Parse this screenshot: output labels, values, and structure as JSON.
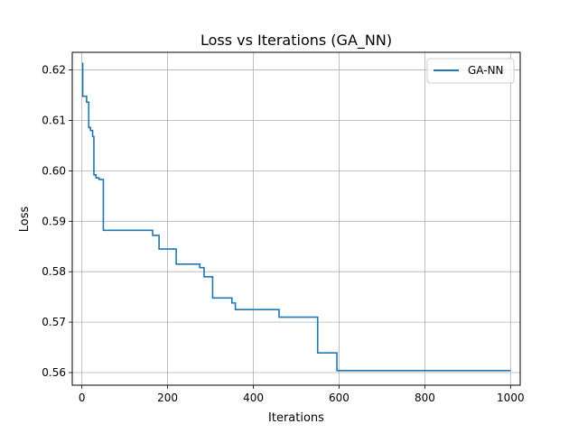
{
  "chart_data": {
    "type": "line",
    "title": "Loss vs Iterations (GA_NN)",
    "xlabel": "Iterations",
    "ylabel": "Loss",
    "xlim": [
      -22.5,
      1022.5
    ],
    "ylim": [
      0.5575,
      0.6235
    ],
    "xticks": [
      0,
      200,
      400,
      600,
      800,
      1000
    ],
    "xtick_labels": [
      "0",
      "200",
      "400",
      "600",
      "800",
      "1000"
    ],
    "yticks": [
      0.56,
      0.57,
      0.58,
      0.59,
      0.6,
      0.61,
      0.62
    ],
    "ytick_labels": [
      "0.56",
      "0.57",
      "0.58",
      "0.59",
      "0.60",
      "0.61",
      "0.62"
    ],
    "grid": true,
    "legend_position": "upper right",
    "series": [
      {
        "name": "GA-NN",
        "color": "#1f77b4",
        "step": true,
        "x": [
          0,
          2,
          11,
          16,
          20,
          25,
          28,
          33,
          40,
          50,
          165,
          180,
          220,
          275,
          285,
          305,
          350,
          358,
          460,
          550,
          595,
          1000
        ],
        "y": [
          0.6213,
          0.6148,
          0.6136,
          0.6086,
          0.608,
          0.6068,
          0.5992,
          0.5986,
          0.5983,
          0.5882,
          0.5872,
          0.5845,
          0.5815,
          0.5808,
          0.579,
          0.5748,
          0.5738,
          0.5725,
          0.571,
          0.5639,
          0.5604,
          0.5604
        ]
      }
    ]
  }
}
